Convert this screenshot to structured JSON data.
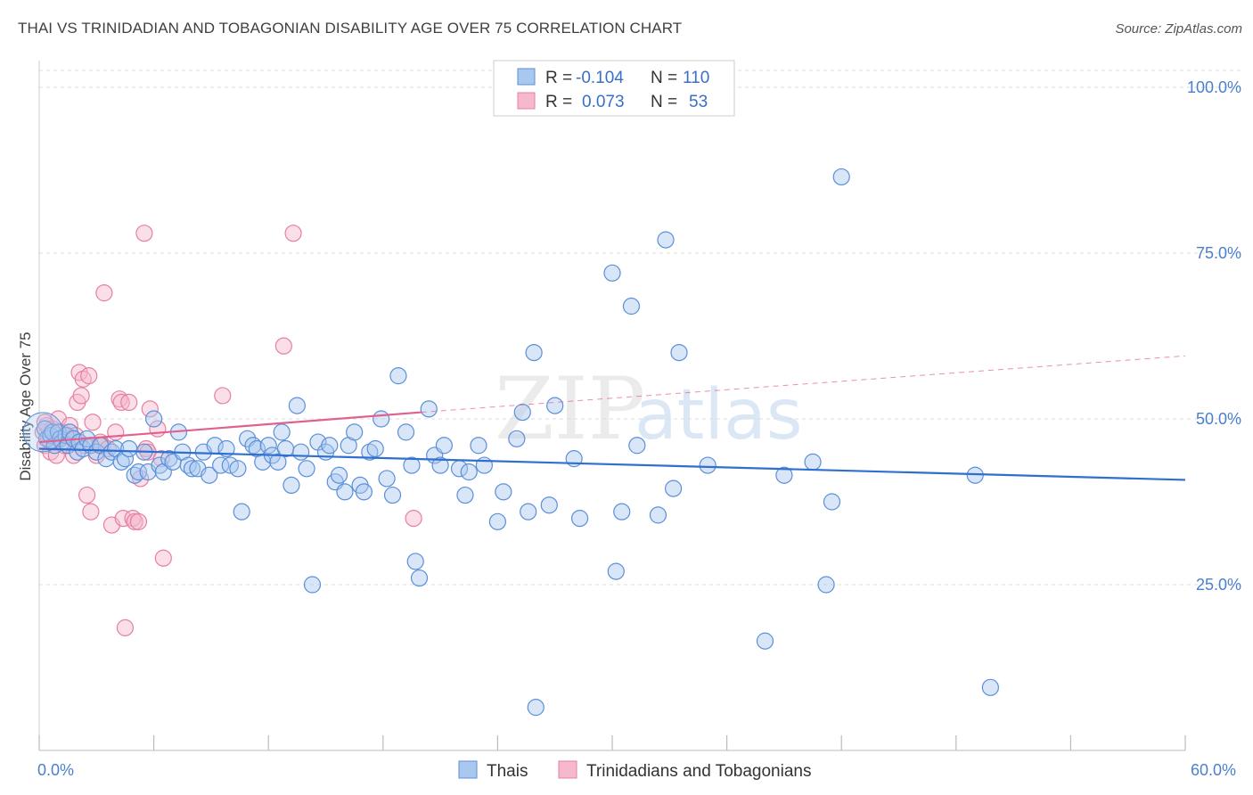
{
  "title": "THAI VS TRINIDADIAN AND TOBAGONIAN DISABILITY AGE OVER 75 CORRELATION CHART",
  "source": "Source: ZipAtlas.com",
  "watermark": {
    "zip": "ZIP",
    "atlas": "atlas"
  },
  "colors": {
    "blue_fill": "#a8c8f0",
    "blue_stroke": "#5b8fd8",
    "blue_line": "#2e6fd0",
    "pink_fill": "#f5b8cc",
    "pink_stroke": "#e77fa3",
    "pink_line": "#e0608e",
    "grid": "#dddddd",
    "axis_label": "#4a7fd0"
  },
  "legend": {
    "rows": [
      {
        "r_label": "R =",
        "r_value": "-0.104",
        "n_label": "N =",
        "n_value": "110"
      },
      {
        "r_label": "R =",
        "r_value": "0.073",
        "n_label": "N =",
        "n_value": "53"
      }
    ]
  },
  "bottom_legend": [
    "Thais",
    "Trinidadians and Tobagonians"
  ],
  "chart_data": {
    "type": "scatter",
    "title": "THAI VS TRINIDADIAN AND TOBAGONIAN DISABILITY AGE OVER 75 CORRELATION CHART",
    "xlabel": "",
    "ylabel": "Disability Age Over 75",
    "xlim": [
      0,
      60
    ],
    "ylim": [
      0,
      100
    ],
    "x_tick_labels": [
      "0.0%",
      "60.0%"
    ],
    "y_ticks": [
      25,
      50,
      75,
      100
    ],
    "y_tick_labels": [
      "25.0%",
      "50.0%",
      "75.0%",
      "100.0%"
    ],
    "grid": true,
    "legend_placement": "top-center",
    "series": [
      {
        "name": "Thais",
        "trend": {
          "x": [
            0,
            60
          ],
          "y": [
            45.5,
            40.8
          ]
        },
        "points": [
          [
            0.3,
            48.5
          ],
          [
            0.4,
            47.0
          ],
          [
            0.6,
            47.5
          ],
          [
            0.7,
            48.0
          ],
          [
            0.8,
            46.0
          ],
          [
            1.0,
            48.0
          ],
          [
            1.1,
            47.0
          ],
          [
            1.2,
            46.5
          ],
          [
            1.4,
            47.5
          ],
          [
            1.5,
            46.0
          ],
          [
            1.6,
            48.0
          ],
          [
            1.8,
            47.0
          ],
          [
            2.0,
            45.0
          ],
          [
            2.1,
            46.5
          ],
          [
            2.3,
            45.5
          ],
          [
            2.5,
            47.0
          ],
          [
            2.7,
            46.0
          ],
          [
            3.0,
            45.0
          ],
          [
            3.2,
            46.0
          ],
          [
            3.5,
            44.0
          ],
          [
            3.8,
            45.0
          ],
          [
            4.0,
            45.5
          ],
          [
            4.3,
            43.5
          ],
          [
            4.5,
            44.0
          ],
          [
            4.7,
            45.5
          ],
          [
            5.0,
            41.5
          ],
          [
            5.2,
            42.0
          ],
          [
            5.5,
            45.0
          ],
          [
            5.7,
            42.0
          ],
          [
            6.0,
            50.0
          ],
          [
            6.3,
            43.0
          ],
          [
            6.5,
            42.0
          ],
          [
            6.8,
            44.0
          ],
          [
            7.0,
            43.5
          ],
          [
            7.3,
            48.0
          ],
          [
            7.5,
            45.0
          ],
          [
            7.8,
            43.0
          ],
          [
            8.0,
            42.5
          ],
          [
            8.3,
            42.5
          ],
          [
            8.6,
            45.0
          ],
          [
            8.9,
            41.5
          ],
          [
            9.2,
            46.0
          ],
          [
            9.5,
            43.0
          ],
          [
            9.8,
            45.5
          ],
          [
            10.0,
            43.0
          ],
          [
            10.4,
            42.5
          ],
          [
            10.6,
            36.0
          ],
          [
            10.9,
            47.0
          ],
          [
            11.2,
            46.0
          ],
          [
            11.4,
            45.5
          ],
          [
            11.7,
            43.5
          ],
          [
            12.0,
            46.0
          ],
          [
            12.2,
            44.5
          ],
          [
            12.5,
            43.5
          ],
          [
            12.7,
            48.0
          ],
          [
            12.9,
            45.5
          ],
          [
            13.2,
            40.0
          ],
          [
            13.5,
            52.0
          ],
          [
            13.7,
            45.0
          ],
          [
            14.0,
            42.5
          ],
          [
            14.3,
            25.0
          ],
          [
            14.6,
            46.5
          ],
          [
            15.0,
            45.0
          ],
          [
            15.2,
            46.0
          ],
          [
            15.5,
            40.5
          ],
          [
            15.7,
            41.5
          ],
          [
            16.0,
            39.0
          ],
          [
            16.2,
            46.0
          ],
          [
            16.5,
            48.0
          ],
          [
            16.8,
            40.0
          ],
          [
            17.0,
            39.0
          ],
          [
            17.3,
            45.0
          ],
          [
            17.6,
            45.5
          ],
          [
            17.9,
            50.0
          ],
          [
            18.2,
            41.0
          ],
          [
            18.5,
            38.5
          ],
          [
            18.8,
            56.5
          ],
          [
            19.2,
            48.0
          ],
          [
            19.5,
            43.0
          ],
          [
            19.7,
            28.5
          ],
          [
            19.9,
            26.0
          ],
          [
            20.4,
            51.5
          ],
          [
            20.7,
            44.5
          ],
          [
            21.0,
            43.0
          ],
          [
            21.2,
            46.0
          ],
          [
            22.0,
            42.5
          ],
          [
            22.3,
            38.5
          ],
          [
            22.5,
            42.0
          ],
          [
            23.0,
            46.0
          ],
          [
            23.3,
            43.0
          ],
          [
            24.0,
            34.5
          ],
          [
            24.3,
            39.0
          ],
          [
            25.0,
            47.0
          ],
          [
            25.3,
            51.0
          ],
          [
            25.6,
            36.0
          ],
          [
            25.9,
            60.0
          ],
          [
            26.0,
            6.5
          ],
          [
            26.7,
            37.0
          ],
          [
            27.0,
            52.0
          ],
          [
            28.0,
            44.0
          ],
          [
            28.3,
            35.0
          ],
          [
            30.0,
            72.0
          ],
          [
            30.2,
            27.0
          ],
          [
            30.5,
            36.0
          ],
          [
            31.0,
            67.0
          ],
          [
            31.3,
            46.0
          ],
          [
            32.4,
            35.5
          ],
          [
            32.8,
            77.0
          ],
          [
            33.2,
            39.5
          ],
          [
            33.5,
            60.0
          ],
          [
            35.0,
            43.0
          ],
          [
            38.0,
            16.5
          ]
        ],
        "extra_points": [
          [
            39.0,
            41.5
          ],
          [
            40.5,
            43.5
          ],
          [
            41.2,
            25.0
          ],
          [
            41.5,
            37.5
          ],
          [
            42.0,
            86.5
          ],
          [
            49.0,
            41.5
          ],
          [
            49.8,
            9.5
          ]
        ]
      },
      {
        "name": "Trinidadians and Tobagonians",
        "trend": {
          "x": [
            0,
            20
          ],
          "y": [
            46.5,
            51.0
          ]
        },
        "trend_ext": {
          "x": [
            20,
            60
          ],
          "y": [
            51.0,
            59.5
          ]
        },
        "points": [
          [
            0.2,
            48.0
          ],
          [
            0.3,
            46.0
          ],
          [
            0.4,
            49.0
          ],
          [
            0.5,
            47.0
          ],
          [
            0.6,
            45.0
          ],
          [
            0.7,
            48.5
          ],
          [
            0.8,
            46.5
          ],
          [
            0.9,
            44.5
          ],
          [
            1.0,
            50.0
          ],
          [
            1.1,
            47.0
          ],
          [
            1.2,
            48.0
          ],
          [
            1.3,
            46.0
          ],
          [
            1.5,
            47.5
          ],
          [
            1.6,
            49.0
          ],
          [
            1.8,
            44.5
          ],
          [
            1.9,
            47.5
          ],
          [
            2.0,
            52.5
          ],
          [
            2.1,
            57.0
          ],
          [
            2.2,
            53.5
          ],
          [
            2.3,
            56.0
          ],
          [
            2.4,
            46.0
          ],
          [
            2.5,
            38.5
          ],
          [
            2.6,
            56.5
          ],
          [
            2.7,
            36.0
          ],
          [
            2.8,
            49.5
          ],
          [
            3.0,
            44.5
          ],
          [
            3.2,
            46.5
          ],
          [
            3.3,
            46.0
          ],
          [
            3.4,
            69.0
          ],
          [
            3.6,
            45.5
          ],
          [
            3.8,
            34.0
          ],
          [
            4.0,
            48.0
          ],
          [
            4.2,
            53.0
          ],
          [
            4.3,
            52.5
          ],
          [
            4.4,
            35.0
          ],
          [
            4.5,
            18.5
          ],
          [
            4.7,
            52.5
          ],
          [
            4.9,
            35.0
          ],
          [
            5.0,
            34.5
          ],
          [
            5.2,
            34.5
          ],
          [
            5.3,
            41.0
          ],
          [
            5.5,
            78.0
          ],
          [
            5.6,
            45.5
          ],
          [
            5.7,
            45.0
          ],
          [
            5.8,
            51.5
          ],
          [
            6.2,
            48.5
          ],
          [
            6.4,
            44.0
          ],
          [
            6.5,
            29.0
          ],
          [
            9.6,
            53.5
          ],
          [
            12.8,
            61.0
          ],
          [
            13.3,
            78.0
          ],
          [
            19.6,
            35.0
          ],
          [
            0.3,
            49.5
          ]
        ]
      }
    ]
  }
}
